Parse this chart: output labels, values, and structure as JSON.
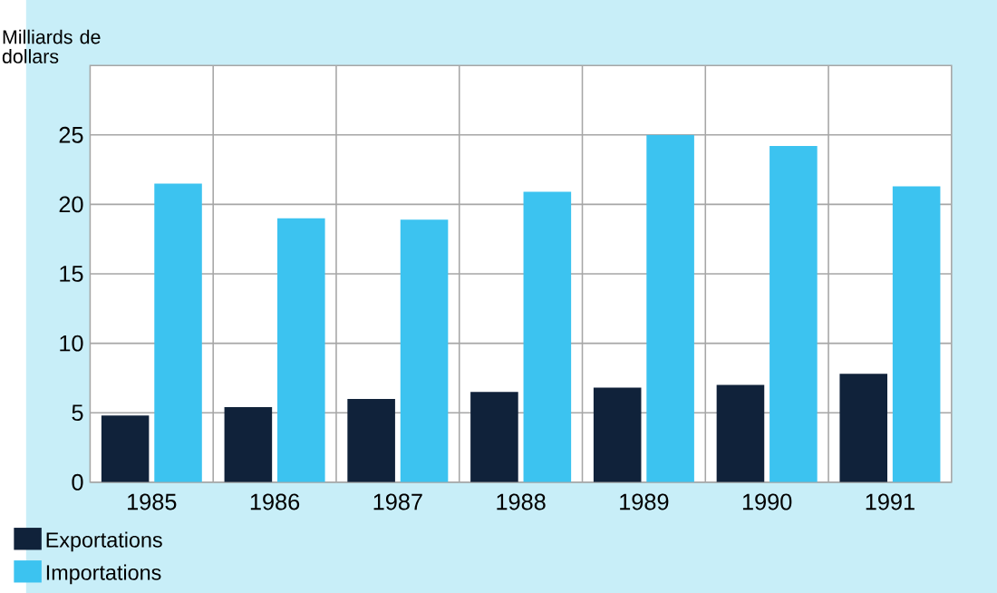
{
  "chart_data": {
    "type": "bar",
    "ylabel": "Milliards de dollars",
    "categories": [
      "1985",
      "1986",
      "1987",
      "1988",
      "1989",
      "1990",
      "1991"
    ],
    "series": [
      {
        "name": "Exportations",
        "color": "#10223a",
        "values": [
          4.8,
          5.4,
          6.0,
          6.5,
          6.8,
          7.0,
          7.8
        ]
      },
      {
        "name": "Importations",
        "color": "#3cc3f0",
        "values": [
          21.5,
          19.0,
          18.9,
          20.9,
          25.0,
          24.2,
          21.3
        ]
      }
    ],
    "ylim": [
      0,
      30
    ],
    "yticks": [
      0,
      5,
      10,
      15,
      20,
      25
    ],
    "grid": true,
    "legend": "bottom left"
  }
}
